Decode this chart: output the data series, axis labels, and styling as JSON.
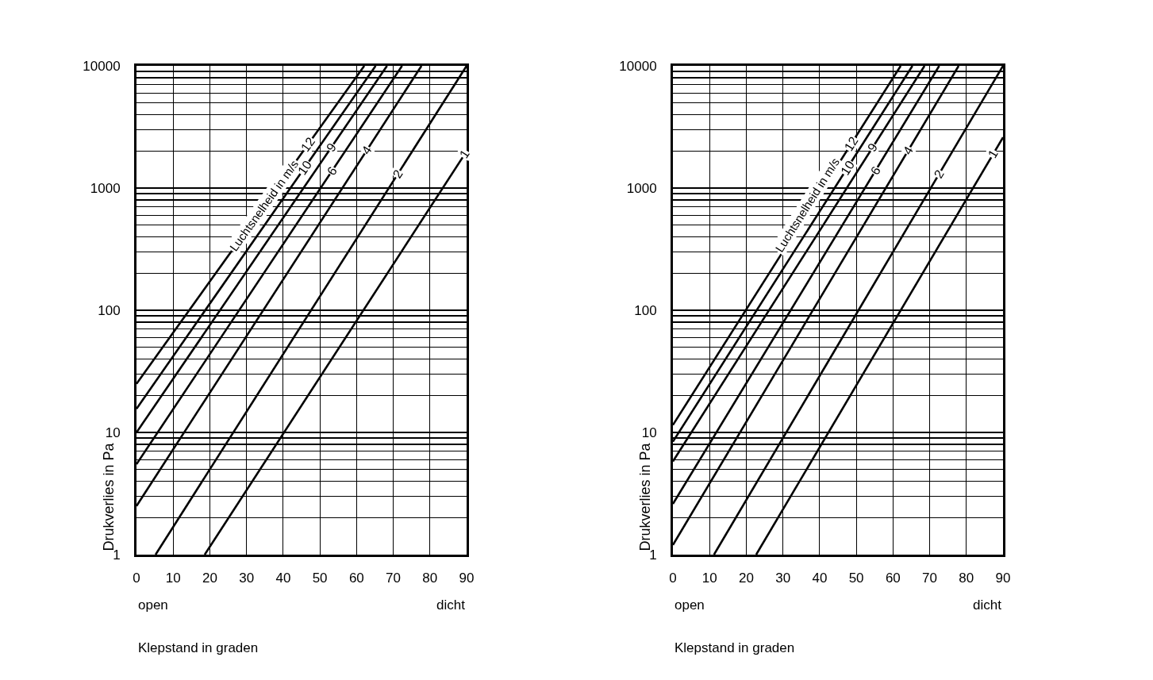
{
  "chart_data": [
    {
      "type": "line",
      "xlabel": "Klepstand in graden",
      "ylabel": "Drukverlies in Pa",
      "legend_title": "Luchtsnelheid in m/s",
      "log": "y",
      "grid": true,
      "annotations": [
        "open",
        "dicht"
      ],
      "xlim": [
        0,
        90
      ],
      "xticks": [
        0,
        10,
        20,
        30,
        40,
        50,
        60,
        70,
        80,
        90
      ],
      "ylim": [
        1,
        10000
      ],
      "yticks": [
        1,
        {
          "value": 2,
          "label": null
        },
        {
          "value": 3,
          "label": null
        },
        {
          "value": 4,
          "label": null
        },
        {
          "value": 5,
          "label": null
        },
        {
          "value": 6,
          "label": null
        },
        {
          "value": 7,
          "label": null
        },
        {
          "value": 8,
          "label": null
        },
        {
          "value": 9,
          "label": null
        },
        10,
        {
          "value": 20,
          "label": null
        },
        {
          "value": 30,
          "label": null
        },
        {
          "value": 40,
          "label": null
        },
        {
          "value": 50,
          "label": null
        },
        {
          "value": 60,
          "label": null
        },
        {
          "value": 70,
          "label": null
        },
        {
          "value": 80,
          "label": null
        },
        {
          "value": 90,
          "label": null
        },
        100,
        {
          "value": 200,
          "label": null
        },
        {
          "value": 300,
          "label": null
        },
        {
          "value": 400,
          "label": null
        },
        {
          "value": 500,
          "label": null
        },
        {
          "value": 600,
          "label": null
        },
        {
          "value": 700,
          "label": null
        },
        {
          "value": 800,
          "label": null
        },
        {
          "value": 900,
          "label": null
        },
        1000,
        {
          "value": 2000,
          "label": null
        },
        {
          "value": 3000,
          "label": null
        },
        {
          "value": 4000,
          "label": null
        },
        {
          "value": 5000,
          "label": null
        },
        {
          "value": 6000,
          "label": null
        },
        {
          "value": 7000,
          "label": null
        },
        {
          "value": 8000,
          "label": null
        },
        {
          "value": 9000,
          "label": null
        },
        10000
      ],
      "series": [
        {
          "name": "12",
          "color": "#000000",
          "x": [
            0,
            62.1
          ],
          "values": [
            25,
            10000
          ]
        },
        {
          "name": "10",
          "color": "#000000",
          "x": [
            0,
            65.2
          ],
          "values": [
            15.6,
            10000
          ]
        },
        {
          "name": "9",
          "color": "#000000",
          "x": [
            0,
            68.3
          ],
          "values": [
            10,
            10000
          ]
        },
        {
          "name": "6",
          "color": "#000000",
          "x": [
            0,
            72.4
          ],
          "values": [
            5.5,
            10000
          ]
        },
        {
          "name": "4",
          "color": "#000000",
          "x": [
            0,
            77.7
          ],
          "values": [
            2.5,
            10000
          ]
        },
        {
          "name": "2",
          "color": "#000000",
          "x": [
            5.2,
            90
          ],
          "values": [
            1,
            10000
          ]
        },
        {
          "name": "1",
          "color": "#000000",
          "x": [
            18.6,
            90
          ],
          "values": [
            1,
            2000
          ]
        }
      ]
    },
    {
      "type": "line",
      "xlabel": "Klepstand in graden",
      "ylabel": "Drukverlies in Pa",
      "legend_title": "Luchtsnelheid in m/s",
      "log": "y",
      "grid": true,
      "annotations": [
        "open",
        "dicht"
      ],
      "xlim": [
        0,
        90
      ],
      "xticks": [
        0,
        10,
        20,
        30,
        40,
        50,
        60,
        70,
        80,
        90
      ],
      "ylim": [
        1,
        10000
      ],
      "yticks": [
        1,
        {
          "value": 2,
          "label": null
        },
        {
          "value": 3,
          "label": null
        },
        {
          "value": 4,
          "label": null
        },
        {
          "value": 5,
          "label": null
        },
        {
          "value": 6,
          "label": null
        },
        {
          "value": 7,
          "label": null
        },
        {
          "value": 8,
          "label": null
        },
        {
          "value": 9,
          "label": null
        },
        10,
        {
          "value": 20,
          "label": null
        },
        {
          "value": 30,
          "label": null
        },
        {
          "value": 40,
          "label": null
        },
        {
          "value": 50,
          "label": null
        },
        {
          "value": 60,
          "label": null
        },
        {
          "value": 70,
          "label": null
        },
        {
          "value": 80,
          "label": null
        },
        {
          "value": 90,
          "label": null
        },
        100,
        {
          "value": 200,
          "label": null
        },
        {
          "value": 300,
          "label": null
        },
        {
          "value": 400,
          "label": null
        },
        {
          "value": 500,
          "label": null
        },
        {
          "value": 600,
          "label": null
        },
        {
          "value": 700,
          "label": null
        },
        {
          "value": 800,
          "label": null
        },
        {
          "value": 900,
          "label": null
        },
        1000,
        {
          "value": 2000,
          "label": null
        },
        {
          "value": 3000,
          "label": null
        },
        {
          "value": 4000,
          "label": null
        },
        {
          "value": 5000,
          "label": null
        },
        {
          "value": 6000,
          "label": null
        },
        {
          "value": 7000,
          "label": null
        },
        {
          "value": 8000,
          "label": null
        },
        {
          "value": 9000,
          "label": null
        },
        10000
      ],
      "series": [
        {
          "name": "12",
          "color": "#000000",
          "x": [
            0,
            62.1
          ],
          "values": [
            11.5,
            10000
          ]
        },
        {
          "name": "10",
          "color": "#000000",
          "x": [
            0,
            65.3
          ],
          "values": [
            8.4,
            10000
          ]
        },
        {
          "name": "9",
          "color": "#000000",
          "x": [
            0,
            68.6
          ],
          "values": [
            5.8,
            10000
          ]
        },
        {
          "name": "6",
          "color": "#000000",
          "x": [
            0,
            72.6
          ],
          "values": [
            2.6,
            10000
          ]
        },
        {
          "name": "4",
          "color": "#000000",
          "x": [
            0,
            77.9
          ],
          "values": [
            1.2,
            10000
          ]
        },
        {
          "name": "2",
          "color": "#000000",
          "x": [
            11.2,
            90
          ],
          "values": [
            1,
            10000
          ]
        },
        {
          "name": "1",
          "color": "#000000",
          "x": [
            22.7,
            90
          ],
          "values": [
            1,
            2600
          ]
        }
      ]
    }
  ]
}
